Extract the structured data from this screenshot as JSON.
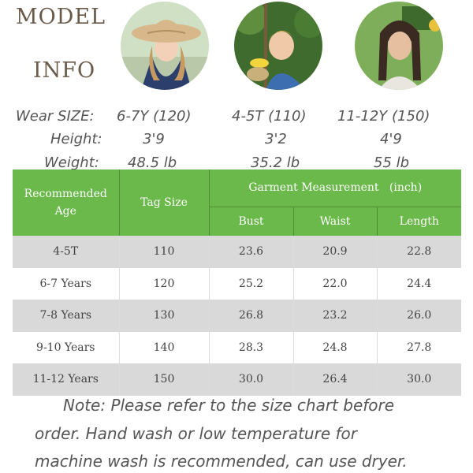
{
  "title": {
    "line1": "MODEL",
    "line2": "INFO"
  },
  "models": [
    {
      "icon": "girl-sunhat-photo",
      "size": "6-7Y (120)",
      "height": "3'9",
      "weight": "48.5 lb"
    },
    {
      "icon": "boy-swing-photo",
      "size": "4-5T (110)",
      "height": "3'2",
      "weight": "35.2 lb"
    },
    {
      "icon": "girl-outdoor-photo",
      "size": "11-12Y (150)",
      "height": "4'9",
      "weight": "55 lb"
    }
  ],
  "info_labels": {
    "size": "Wear SIZE:",
    "height": "Height:",
    "weight": "Weight:"
  },
  "table": {
    "header": {
      "age": "Recommended Age",
      "tag": "Tag Size",
      "garment": "Garment Measurement   (inch)",
      "bust": "Bust",
      "waist": "Waist",
      "length": "Length"
    },
    "rows": [
      {
        "age": "4-5T",
        "tag": "110",
        "bust": "23.6",
        "waist": "20.9",
        "length": "22.8"
      },
      {
        "age": "6-7 Years",
        "tag": "120",
        "bust": "25.2",
        "waist": "22.0",
        "length": "24.4"
      },
      {
        "age": "7-8 Years",
        "tag": "130",
        "bust": "26.8",
        "waist": "23.2",
        "length": "26.0"
      },
      {
        "age": "9-10 Years",
        "tag": "140",
        "bust": "28.3",
        "waist": "24.8",
        "length": "27.8"
      },
      {
        "age": "11-12 Years",
        "tag": "150",
        "bust": "30.0",
        "waist": "26.4",
        "length": "30.0"
      }
    ]
  },
  "note": {
    "line1": "Note: Please refer to the size chart before",
    "line2": "order. Hand wash or low temperature for",
    "line3": "machine wash is recommended, can use dryer."
  },
  "colors": {
    "header_green": "#6ab94a",
    "row_shade": "#d9d9d9",
    "title": "#6a5a4a"
  }
}
